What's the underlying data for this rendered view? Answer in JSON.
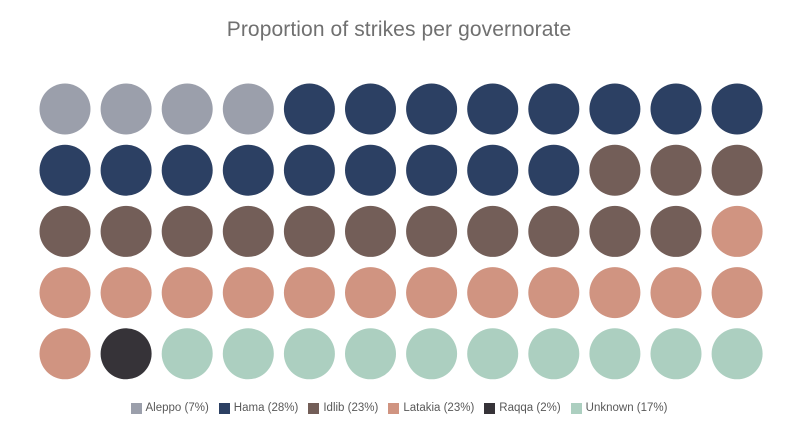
{
  "chart_data": {
    "type": "waffle",
    "title": "Proportion of strikes per governorate",
    "rows": 5,
    "columns": 12,
    "categories": [
      {
        "name": "Aleppo",
        "label": "Aleppo (7%)",
        "percent": 7,
        "count": 4,
        "color": "#9b9fab"
      },
      {
        "name": "Hama",
        "label": "Hama (28%)",
        "percent": 28,
        "count": 17,
        "color": "#2c4063"
      },
      {
        "name": "Idlib",
        "label": "Idlib (23%)",
        "percent": 23,
        "count": 14,
        "color": "#735e58"
      },
      {
        "name": "Latakia",
        "label": "Latakia (23%)",
        "percent": 23,
        "count": 14,
        "color": "#d09481"
      },
      {
        "name": "Raqqa",
        "label": "Raqqa (2%)",
        "percent": 2,
        "count": 1,
        "color": "#363338"
      },
      {
        "name": "Unknown",
        "label": "Unknown (17%)",
        "percent": 17,
        "count": 10,
        "color": "#accfc0"
      }
    ],
    "legend_position": "bottom-center"
  }
}
